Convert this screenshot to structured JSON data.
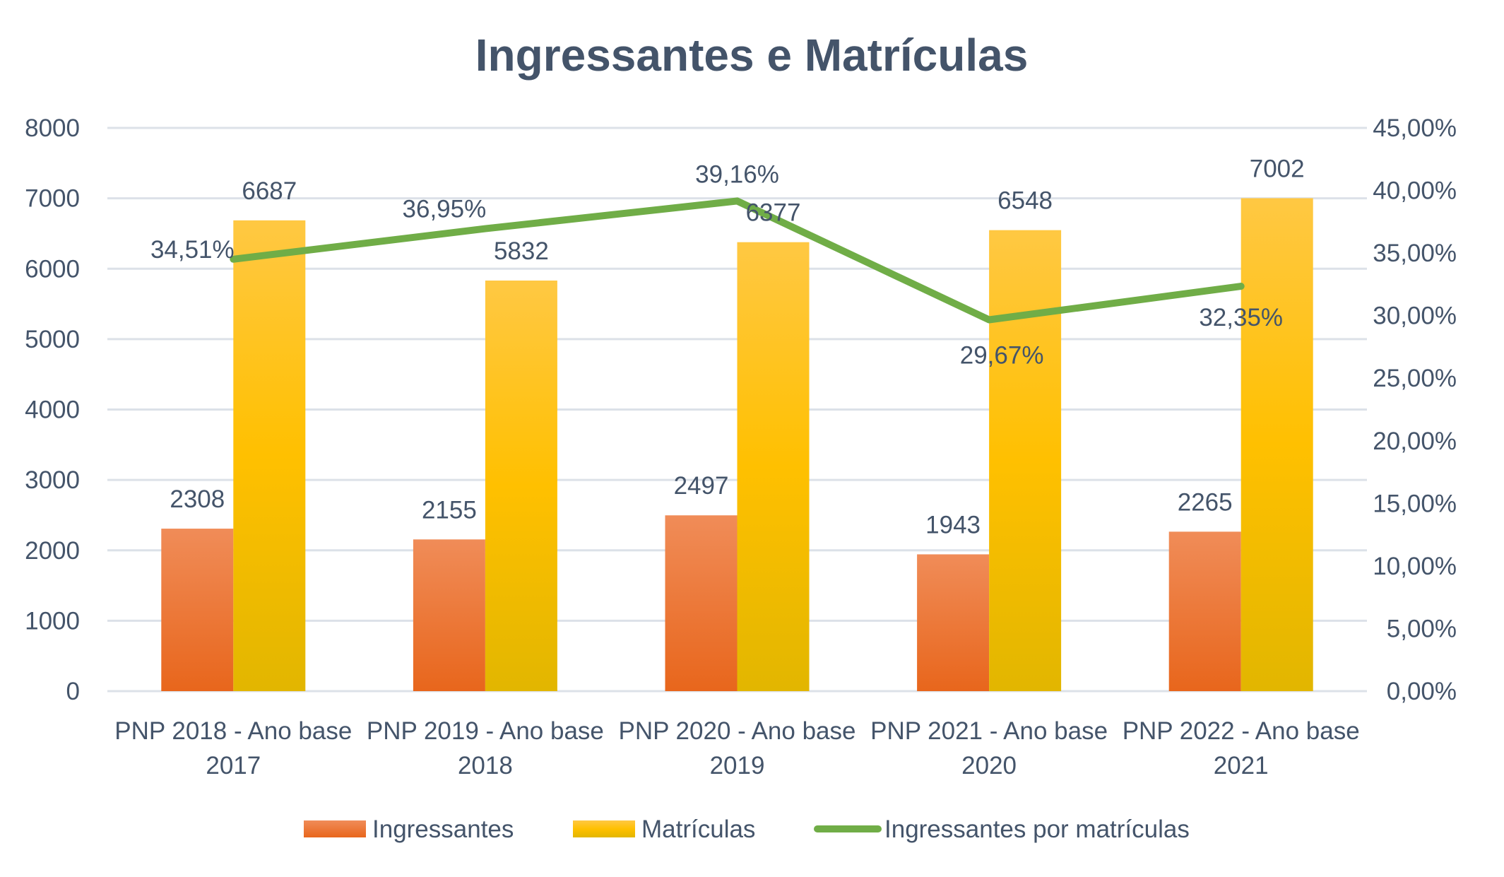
{
  "chart_data": {
    "type": "bar",
    "title": "Ingressantes e Matrículas",
    "categories": [
      [
        "PNP 2018 - Ano base",
        "2017"
      ],
      [
        "PNP 2019 - Ano base",
        "2018"
      ],
      [
        "PNP 2020 - Ano base",
        "2019"
      ],
      [
        "PNP 2021 - Ano base",
        "2020"
      ],
      [
        "PNP 2022 - Ano base",
        "2021"
      ]
    ],
    "series": [
      {
        "name": "Ingressantes",
        "type": "bar",
        "axis": "left",
        "values": [
          2308,
          2155,
          2497,
          1943,
          2265
        ],
        "labels": [
          "2308",
          "2155",
          "2497",
          "1943",
          "2265"
        ],
        "color_top": "#F08C58",
        "color_bottom": "#E8661C"
      },
      {
        "name": "Matrículas",
        "type": "bar",
        "axis": "left",
        "values": [
          6687,
          5832,
          6377,
          6548,
          7002
        ],
        "labels": [
          "6687",
          "5832",
          "6377",
          "6548",
          "7002"
        ],
        "color_top": "#FFC843",
        "color_mid": "#FFC000",
        "color_bottom": "#E2B600"
      },
      {
        "name": "Ingressantes por matrículas",
        "type": "line",
        "axis": "right",
        "values": [
          34.51,
          36.95,
          39.16,
          29.67,
          32.35
        ],
        "labels": [
          "34,51%",
          "36,95%",
          "39,16%",
          "29,67%",
          "32,35%"
        ],
        "color": "#70AD47"
      }
    ],
    "left_axis": {
      "ylim": [
        0,
        8000
      ],
      "ticks": [
        "0",
        "1000",
        "2000",
        "3000",
        "4000",
        "5000",
        "6000",
        "7000",
        "8000"
      ]
    },
    "right_axis": {
      "ylim": [
        0,
        45
      ],
      "ticks": [
        "0,00%",
        "5,00%",
        "10,00%",
        "15,00%",
        "20,00%",
        "25,00%",
        "30,00%",
        "35,00%",
        "40,00%",
        "45,00%"
      ]
    },
    "xlabel": "",
    "ylabel": "",
    "grid": true,
    "legend": "bottom",
    "text_color": "#44546A",
    "grid_color": "#DCE1E8"
  }
}
